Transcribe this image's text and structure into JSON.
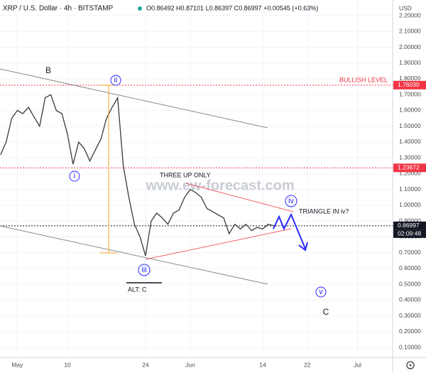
{
  "chart_data": {
    "type": "line",
    "title": "XRP / U.S. Dollar · 4h · BITSTAMP",
    "ohlc": "O0.86492 H0.87101 L0.86397 C0.86997 +0.00545 (+0.63%)",
    "currency": "USD",
    "watermark": "www.ew-forecast.com",
    "color": "#3a3a3a",
    "x": [
      118,
      119,
      120,
      121,
      122,
      123,
      124,
      125,
      126,
      127,
      128,
      129,
      130,
      131,
      132,
      133,
      134,
      135,
      136,
      137,
      138,
      139,
      140,
      141,
      142,
      143,
      144,
      145,
      146,
      147,
      148,
      149,
      150,
      151,
      152,
      153,
      154,
      155,
      156,
      157,
      158,
      159,
      160,
      161,
      162,
      163,
      164,
      165,
      166,
      167
    ],
    "values": [
      1.32,
      1.4,
      1.55,
      1.6,
      1.58,
      1.62,
      1.56,
      1.5,
      1.68,
      1.7,
      1.6,
      1.58,
      1.45,
      1.26,
      1.4,
      1.36,
      1.28,
      1.35,
      1.42,
      1.55,
      1.62,
      1.68,
      1.25,
      1.05,
      0.88,
      0.8,
      0.68,
      0.9,
      0.95,
      0.92,
      0.88,
      0.95,
      0.97,
      1.05,
      1.1,
      1.08,
      1.05,
      0.98,
      0.96,
      0.94,
      0.92,
      0.82,
      0.88,
      0.85,
      0.88,
      0.84,
      0.86,
      0.85,
      0.88,
      0.87
    ],
    "xlim": [
      117.9,
      188.3
    ],
    "xticks": [
      {
        "value": 121,
        "label": "May"
      },
      {
        "value": 130,
        "label": "10"
      },
      {
        "value": 144,
        "label": "24"
      },
      {
        "value": 152,
        "label": "Jun"
      },
      {
        "value": 165,
        "label": "14"
      },
      {
        "value": 173,
        "label": "22"
      },
      {
        "value": 182,
        "label": "Jul"
      }
    ],
    "ylim": [
      0.051,
      2.299
    ],
    "yticks": [
      {
        "value": 0.1,
        "label": "0.10000"
      },
      {
        "value": 0.2,
        "label": "0.20000"
      },
      {
        "value": 0.3,
        "label": "0.30000"
      },
      {
        "value": 0.4,
        "label": "0.40000"
      },
      {
        "value": 0.5,
        "label": "0.50000"
      },
      {
        "value": 0.6,
        "label": "0.60000"
      },
      {
        "value": 0.7,
        "label": "0.70000"
      },
      {
        "value": 0.8,
        "label": "0.80000"
      },
      {
        "value": 0.9,
        "label": "0.90000"
      },
      {
        "value": 1.0,
        "label": "1.00000"
      },
      {
        "value": 1.1,
        "label": "1.10000"
      },
      {
        "value": 1.2,
        "label": "1.20000"
      },
      {
        "value": 1.3,
        "label": "1.30000"
      },
      {
        "value": 1.4,
        "label": "1.40000"
      },
      {
        "value": 1.5,
        "label": "1.50000"
      },
      {
        "value": 1.6,
        "label": "1.60000"
      },
      {
        "value": 1.7,
        "label": "1.70000"
      },
      {
        "value": 1.8,
        "label": "1.80000"
      },
      {
        "value": 1.9,
        "label": "1.90000"
      },
      {
        "value": 2.0,
        "label": "2.00000"
      },
      {
        "value": 2.1,
        "label": "2.10000"
      },
      {
        "value": 2.2,
        "label": "2.20000"
      }
    ],
    "levels": [
      {
        "value": 1.7603,
        "label": "1.76030",
        "color": "#f23645"
      },
      {
        "value": 1.23672,
        "label": "1.23672",
        "color": "#f23645"
      },
      {
        "value": 0.86997,
        "label": "0.86997",
        "color": "#131722"
      }
    ],
    "countdown": "02:09:48",
    "annotations": {
      "b": "B",
      "i": "i",
      "ii": "ii",
      "iii": "iii",
      "iv": "iv",
      "v": "v",
      "c": "C",
      "alt": "ALT: C",
      "three_up": "THREE UP ONLY",
      "triangle": "TRIANGLE IN iv?",
      "bullish": "BULLISH LEVEL"
    }
  }
}
